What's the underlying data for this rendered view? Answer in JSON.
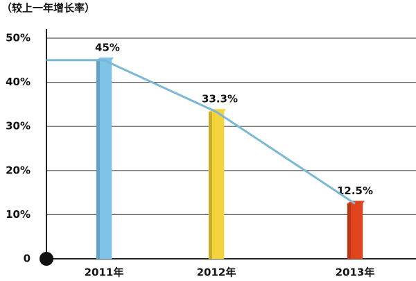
{
  "chart_data": {
    "type": "bar",
    "title": "（较上一年增长率）",
    "categories": [
      "2011年",
      "2012年",
      "2013年"
    ],
    "values": [
      45,
      33.3,
      12.5
    ],
    "value_labels": [
      "45%",
      "33.3%",
      "12.5%"
    ],
    "colors": [
      "#7ec3e8",
      "#f5d33a",
      "#e0441e"
    ],
    "line_color": "#7ab8d6",
    "ylim": [
      0,
      50
    ],
    "yticks": [
      0,
      {
        "value": 10,
        "label": "10%"
      },
      {
        "value": 20,
        "label": "20%"
      },
      {
        "value": 30,
        "label": "30%"
      },
      {
        "value": 40,
        "label": "40%"
      },
      {
        "value": 50,
        "label": "50%"
      }
    ],
    "grid": true
  }
}
